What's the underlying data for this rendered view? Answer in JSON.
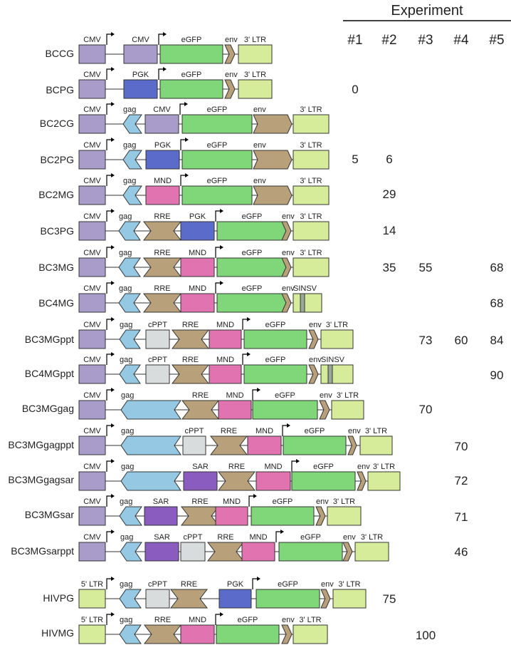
{
  "header": {
    "title": "Experiment",
    "columns": [
      "#1",
      "#2",
      "#3",
      "#4",
      "#5"
    ]
  },
  "colors": {
    "CMV": "#a99ccb",
    "PGK": "#5b6bc9",
    "MND": "#e073b0",
    "eGFP": "#7fd77a",
    "3' LTR": "#d6ec9a",
    "5' LTR": "#d6ec9a",
    "gag": "#95c8e2",
    "env": "#b8a17a",
    "RRE": "#b8a17a",
    "cPPT": "#d9dcdc",
    "SAR": "#8a5cc0",
    "SINSV": "#d6ec9a"
  },
  "constructs": [
    {
      "name": "BCCG",
      "elements": [
        "CMV",
        "CMV",
        "eGFP",
        "env",
        "3' LTR"
      ],
      "values": [
        "",
        "",
        "",
        "",
        ""
      ]
    },
    {
      "name": "BCPG",
      "elements": [
        "CMV",
        "PGK",
        "eGFP",
        "env",
        "3' LTR"
      ],
      "values": [
        "0",
        "",
        "",
        "",
        ""
      ]
    },
    {
      "name": "BC2CG",
      "elements": [
        "CMV",
        "gag",
        "CMV",
        "eGFP",
        "env",
        "3' LTR"
      ],
      "values": [
        "",
        "",
        "",
        "",
        ""
      ]
    },
    {
      "name": "BC2PG",
      "elements": [
        "CMV",
        "gag",
        "PGK",
        "eGFP",
        "env",
        "3' LTR"
      ],
      "values": [
        "5",
        "6",
        "",
        "",
        ""
      ]
    },
    {
      "name": "BC2MG",
      "elements": [
        "CMV",
        "gag",
        "MND",
        "eGFP",
        "env",
        "3' LTR"
      ],
      "values": [
        "",
        "29",
        "",
        "",
        ""
      ]
    },
    {
      "name": "BC3PG",
      "elements": [
        "CMV",
        "gag",
        "RRE",
        "PGK",
        "eGFP",
        "env",
        "3' LTR"
      ],
      "values": [
        "",
        "14",
        "",
        "",
        ""
      ]
    },
    {
      "name": "BC3MG",
      "elements": [
        "CMV",
        "gag",
        "RRE",
        "MND",
        "eGFP",
        "env",
        "3' LTR"
      ],
      "values": [
        "",
        "35",
        "55",
        "",
        "68"
      ]
    },
    {
      "name": "BC4MG",
      "elements": [
        "CMV",
        "gag",
        "RRE",
        "MND",
        "eGFP",
        "env",
        "SINSV"
      ],
      "values": [
        "",
        "",
        "",
        "",
        "68"
      ]
    },
    {
      "name": "BC3MGppt",
      "elements": [
        "CMV",
        "gag",
        "cPPT",
        "RRE",
        "MND",
        "eGFP",
        "env",
        "3' LTR"
      ],
      "values": [
        "",
        "",
        "73",
        "60",
        "84"
      ]
    },
    {
      "name": "BC4MGppt",
      "elements": [
        "CMV",
        "gag",
        "cPPT",
        "RRE",
        "MND",
        "eGFP",
        "env",
        "SINSV"
      ],
      "values": [
        "",
        "",
        "",
        "",
        "90"
      ]
    },
    {
      "name": "BC3MGgag",
      "elements": [
        "CMV",
        "gag",
        "RRE",
        "MND",
        "eGFP",
        "env",
        "3' LTR"
      ],
      "values": [
        "",
        "",
        "70",
        "",
        ""
      ]
    },
    {
      "name": "BC3MGgagppt",
      "elements": [
        "CMV",
        "gag",
        "cPPT",
        "RRE",
        "MND",
        "eGFP",
        "env",
        "3' LTR"
      ],
      "values": [
        "",
        "",
        "",
        "70",
        ""
      ]
    },
    {
      "name": "BC3MGgagsar",
      "elements": [
        "CMV",
        "gag",
        "SAR",
        "RRE",
        "MND",
        "eGFP",
        "env",
        "3' LTR"
      ],
      "values": [
        "",
        "",
        "",
        "72",
        ""
      ]
    },
    {
      "name": "BC3MGsar",
      "elements": [
        "CMV",
        "gag",
        "SAR",
        "RRE",
        "MND",
        "eGFP",
        "env",
        "3' LTR"
      ],
      "values": [
        "",
        "",
        "",
        "71",
        ""
      ]
    },
    {
      "name": "BC3MGsarppt",
      "elements": [
        "CMV",
        "gag",
        "SAR",
        "cPPT",
        "RRE",
        "MND",
        "eGFP",
        "env",
        "3' LTR"
      ],
      "values": [
        "",
        "",
        "",
        "46",
        ""
      ]
    },
    {
      "name": "HIVPG",
      "elements": [
        "5' LTR",
        "gag",
        "cPPT",
        "RRE",
        "PGK",
        "eGFP",
        "env",
        "3' LTR"
      ],
      "values": [
        "",
        "75",
        "",
        "",
        ""
      ]
    },
    {
      "name": "HIVMG",
      "elements": [
        "5' LTR",
        "gag",
        "RRE",
        "MND",
        "eGFP",
        "env",
        "3' LTR"
      ],
      "values": [
        "",
        "",
        "100",
        "",
        ""
      ]
    }
  ]
}
